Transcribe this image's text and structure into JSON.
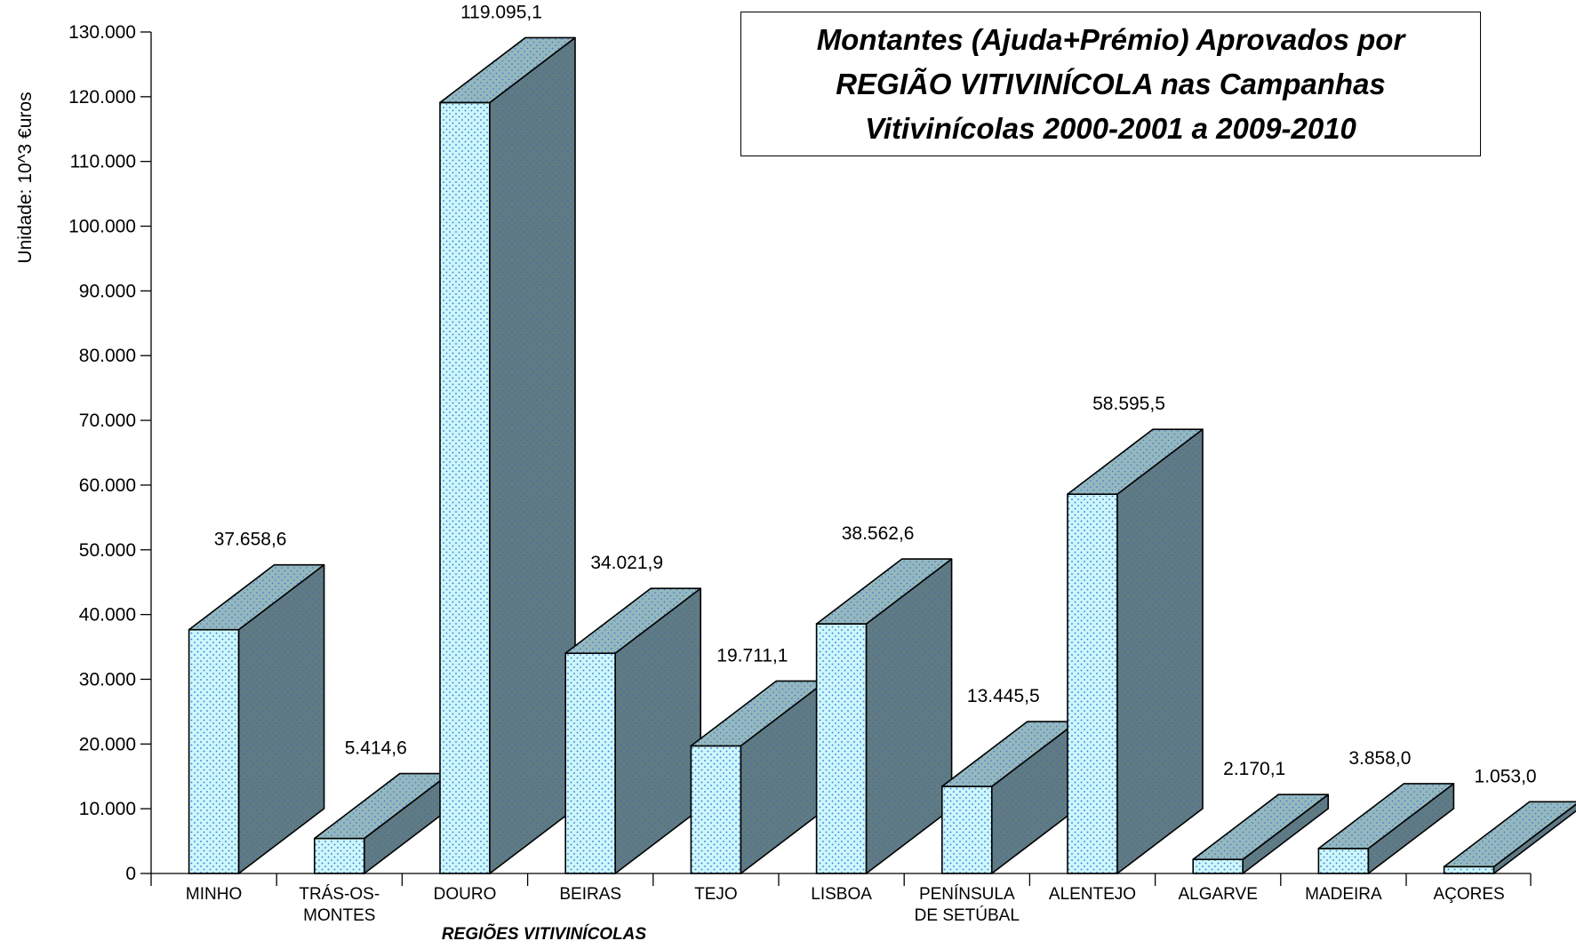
{
  "chart_data": {
    "type": "bar",
    "title_lines": [
      "Montantes (Ajuda+Prémio) Aprovados por",
      "REGIÃO VITIVINÍCOLA nas Campanhas",
      "Vitivinícolas 2000-2001 a 2009-2010"
    ],
    "ylabel": "Unidade: 10^3 €uros",
    "xlabel": "REGIÕES VITIVINÍCOLAS",
    "categories": [
      [
        "MINHO"
      ],
      [
        "TRÁS-OS-",
        "MONTES"
      ],
      [
        "DOURO"
      ],
      [
        "BEIRAS"
      ],
      [
        "TEJO"
      ],
      [
        "LISBOA"
      ],
      [
        "PENÍNSULA",
        "DE SETÚBAL"
      ],
      [
        "ALENTEJO"
      ],
      [
        "ALGARVE"
      ],
      [
        "MADEIRA"
      ],
      [
        "AÇORES"
      ]
    ],
    "values": [
      37658.6,
      5414.6,
      119095.1,
      34021.9,
      19711.1,
      38562.6,
      13445.5,
      58595.5,
      2170.1,
      3858.0,
      1053.0
    ],
    "value_labels": [
      "37.658,6",
      "5.414,6",
      "119.095,1",
      "34.021,9",
      "19.711,1",
      "38.562,6",
      "13.445,5",
      "58.595,5",
      "2.170,1",
      "3.858,0",
      "1.053,0"
    ],
    "ylim": [
      0,
      130000
    ],
    "yticks": [
      0,
      10000,
      20000,
      30000,
      40000,
      50000,
      60000,
      70000,
      80000,
      90000,
      100000,
      110000,
      120000,
      130000
    ],
    "ytick_labels": [
      "0",
      "10.000",
      "20.000",
      "30.000",
      "40.000",
      "50.000",
      "60.000",
      "70.000",
      "80.000",
      "90.000",
      "100.000",
      "110.000",
      "120.000",
      "130.000"
    ],
    "grid": false,
    "legend": "none",
    "style": "3d-bars",
    "colors": {
      "front": "#ccf7fb",
      "top": "#94b8bd",
      "side": "#607b81",
      "dots": "#3a6fd8",
      "outline": "#000000"
    }
  }
}
